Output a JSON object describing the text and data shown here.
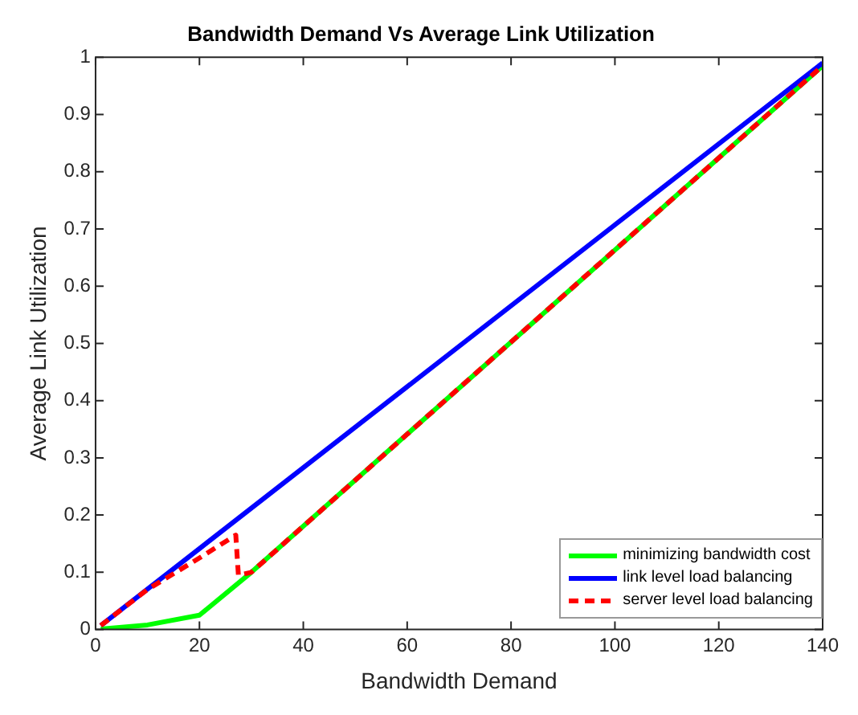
{
  "chart_data": {
    "type": "line",
    "title": "Bandwidth Demand Vs Average Link Utilization",
    "xlabel": "Bandwidth Demand",
    "ylabel": "Average Link Utilization",
    "xlim": [
      0,
      140
    ],
    "xticks": [
      0,
      20,
      40,
      60,
      80,
      100,
      120,
      140
    ],
    "ylim": [
      0,
      1
    ],
    "yticks": [
      0,
      0.1,
      0.2,
      0.3,
      0.4,
      0.5,
      0.6,
      0.7,
      0.8,
      0.9,
      1
    ],
    "grid": false,
    "legend": "bottom right",
    "marker": "none",
    "series": [
      {
        "name": "minimizing bandwidth cost",
        "color": "#00ff00",
        "line_style": "solid",
        "x": [
          1,
          10,
          20,
          30,
          140
        ],
        "values": [
          0.001,
          0.008,
          0.025,
          0.1,
          0.985
        ]
      },
      {
        "name": "link level load balancing",
        "color": "#0000ff",
        "line_style": "solid",
        "x": [
          1,
          140
        ],
        "values": [
          0.007,
          0.99
        ]
      },
      {
        "name": "server level load balancing",
        "color": "#ff0000",
        "line_style": "dashed",
        "x": [
          1,
          10,
          20,
          27,
          27.5,
          30,
          140
        ],
        "values": [
          0.007,
          0.07,
          0.125,
          0.165,
          0.095,
          0.1,
          0.985
        ]
      }
    ]
  }
}
